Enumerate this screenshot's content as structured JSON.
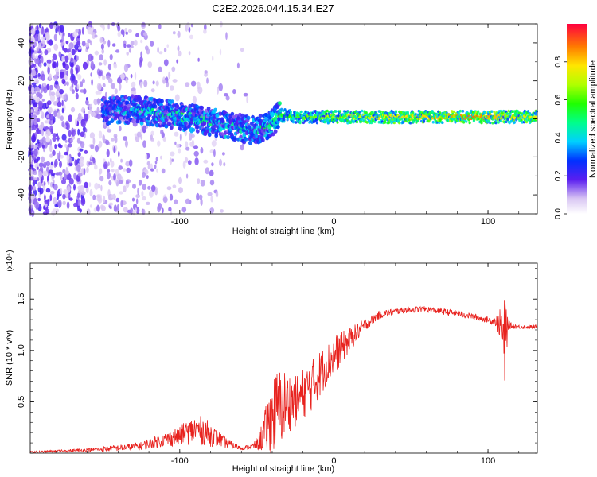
{
  "title": "C2E2.2026.044.15.34.E27",
  "colors": {
    "snr_line": "#e8231f",
    "axis": "#000000"
  },
  "chart_data": [
    {
      "type": "heatmap",
      "name": "spectrogram",
      "xlabel": "Height of straight line (km)",
      "ylabel": "Frequency (Hz)",
      "xlim": [
        -197,
        132
      ],
      "ylim": [
        -50,
        50
      ],
      "x_ticks": [
        -100,
        0,
        100
      ],
      "x_tick_labels": [
        "-100",
        "0",
        "100"
      ],
      "y_ticks": [
        -40,
        -20,
        0,
        20,
        40
      ],
      "y_tick_labels": [
        "-40",
        "-20",
        "0",
        "20",
        "40"
      ],
      "colorbar": {
        "label": "Normalized spectral amplitude",
        "range": [
          0,
          1
        ],
        "ticks": [
          0.0,
          0.2,
          0.4,
          0.6,
          0.8
        ],
        "tick_labels": [
          "0.0",
          "0.2",
          "0.4",
          "0.6",
          "0.8"
        ]
      },
      "signal_track": {
        "heights_km": [
          -150,
          -130,
          -110,
          -90,
          -70,
          -55,
          -45,
          -35,
          -25,
          -10,
          0,
          20,
          60,
          90,
          110,
          132
        ],
        "center_freq_hz": [
          4,
          5,
          3,
          0,
          -3,
          -6,
          -5,
          2,
          1,
          1,
          1,
          1,
          1,
          1,
          1,
          1
        ],
        "amplitude": [
          0.35,
          0.4,
          0.45,
          0.45,
          0.45,
          0.45,
          0.5,
          0.55,
          0.6,
          0.65,
          0.7,
          0.75,
          0.8,
          0.9,
          0.8,
          0.75
        ]
      }
    },
    {
      "type": "line",
      "name": "snr",
      "xlabel": "Height of straight line (km)",
      "ylabel": "SNR (10 * v/v)",
      "y_scale_note": "(x10⁴)",
      "xlim": [
        -197,
        132
      ],
      "ylim": [
        0,
        1.85
      ],
      "x_ticks": [
        -100,
        0,
        100
      ],
      "x_tick_labels": [
        "-100",
        "0",
        "100"
      ],
      "y_ticks": [
        0.5,
        1.0,
        1.5
      ],
      "y_tick_labels": [
        "0.5",
        "1.0",
        "1.5"
      ],
      "series": [
        {
          "name": "SNR",
          "x": [
            -197,
            -180,
            -160,
            -140,
            -125,
            -110,
            -100,
            -95,
            -90,
            -85,
            -80,
            -75,
            -70,
            -65,
            -60,
            -55,
            -50,
            -45,
            -40,
            -35,
            -30,
            -25,
            -20,
            -15,
            -10,
            -5,
            0,
            10,
            20,
            30,
            40,
            50,
            60,
            70,
            80,
            90,
            100,
            105,
            108,
            110,
            111,
            112,
            113,
            115,
            120,
            132
          ],
          "y_mean": [
            0.01,
            0.02,
            0.03,
            0.05,
            0.07,
            0.13,
            0.17,
            0.2,
            0.23,
            0.22,
            0.18,
            0.14,
            0.1,
            0.07,
            0.05,
            0.06,
            0.08,
            0.2,
            0.35,
            0.45,
            0.5,
            0.5,
            0.58,
            0.65,
            0.75,
            0.85,
            0.95,
            1.1,
            1.25,
            1.35,
            1.38,
            1.4,
            1.4,
            1.38,
            1.36,
            1.33,
            1.3,
            1.28,
            1.26,
            1.1,
            1.05,
            1.2,
            1.25,
            1.24,
            1.23,
            1.23
          ],
          "noise": [
            0.01,
            0.01,
            0.02,
            0.03,
            0.04,
            0.07,
            0.1,
            0.12,
            0.14,
            0.14,
            0.12,
            0.08,
            0.05,
            0.03,
            0.02,
            0.02,
            0.05,
            0.2,
            0.4,
            0.4,
            0.3,
            0.25,
            0.25,
            0.25,
            0.25,
            0.2,
            0.2,
            0.12,
            0.06,
            0.04,
            0.03,
            0.03,
            0.03,
            0.03,
            0.03,
            0.03,
            0.03,
            0.05,
            0.15,
            0.35,
            0.5,
            0.3,
            0.05,
            0.03,
            0.02,
            0.02
          ]
        }
      ]
    }
  ]
}
